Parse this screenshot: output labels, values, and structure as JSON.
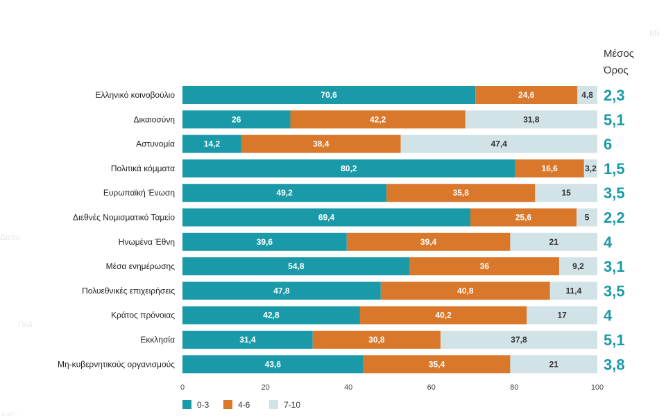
{
  "chart_data": {
    "type": "bar",
    "orientation": "horizontal",
    "stacked": true,
    "title": "",
    "mean_title": [
      "Μέσος",
      "Όρος"
    ],
    "categories": [
      "Ελληνικό κοινοβούλιο",
      "Δικαιοσύνη",
      "Αστυνομία",
      "Πολιτικά κόμματα",
      "Ευρωπαϊκή Ένωση",
      "Διεθνές Νομισματικό Ταμείο",
      "Ηνωμένα Έθνη",
      "Μέσα ενημέρωσης",
      "Πολυεθνικές επιχειρήσεις",
      "Κράτος πρόνοιας",
      "Εκκλησία",
      "Μη-κυβερνητικούς οργανισμούς"
    ],
    "series": [
      {
        "name": "0-3",
        "color": "#1a9aa8",
        "label_color": "#ffffff",
        "values": [
          70.6,
          26,
          14.2,
          80.2,
          49.2,
          69.4,
          39.6,
          54.8,
          47.8,
          42.8,
          31.4,
          43.6
        ],
        "labels": [
          "70,6",
          "26",
          "14,2",
          "80,2",
          "49,2",
          "69,4",
          "39,6",
          "54,8",
          "47,8",
          "42,8",
          "31,4",
          "43,6"
        ]
      },
      {
        "name": "4-6",
        "color": "#d9772b",
        "label_color": "#ffffff",
        "values": [
          24.6,
          42.2,
          38.4,
          16.6,
          35.8,
          25.6,
          39.4,
          36,
          40.8,
          40.2,
          30.8,
          35.4
        ],
        "labels": [
          "24,6",
          "42,2",
          "38,4",
          "16,6",
          "35,8",
          "25,6",
          "39,4",
          "36",
          "40,8",
          "40,2",
          "30,8",
          "35,4"
        ]
      },
      {
        "name": "7-10",
        "color": "#d2e3e7",
        "label_color": "#333333",
        "values": [
          4.8,
          31.8,
          47.4,
          3.2,
          15,
          5,
          21,
          9.2,
          11.4,
          17,
          37.8,
          21
        ],
        "labels": [
          "4,8",
          "31,8",
          "47,4",
          "3,2",
          "15",
          "5",
          "21",
          "9,2",
          "11,4",
          "17",
          "37,8",
          "21"
        ]
      }
    ],
    "mean": [
      "2,3",
      "5,1",
      "6",
      "1,5",
      "3,5",
      "2,2",
      "4",
      "3,1",
      "3,5",
      "4",
      "5,1",
      "3,8"
    ],
    "mean_color": "#1a9aa8",
    "xlim": [
      0,
      100
    ],
    "xticks": [
      0,
      20,
      40,
      60,
      80,
      100
    ],
    "xtick_labels": [
      "0",
      "20",
      "40",
      "60",
      "80",
      "100"
    ],
    "grid": false,
    "legend_position": "bottom-left"
  },
  "background_fragments": [
    "Μέ",
    "Διεθν",
    "Πολ",
    "ιωές"
  ]
}
